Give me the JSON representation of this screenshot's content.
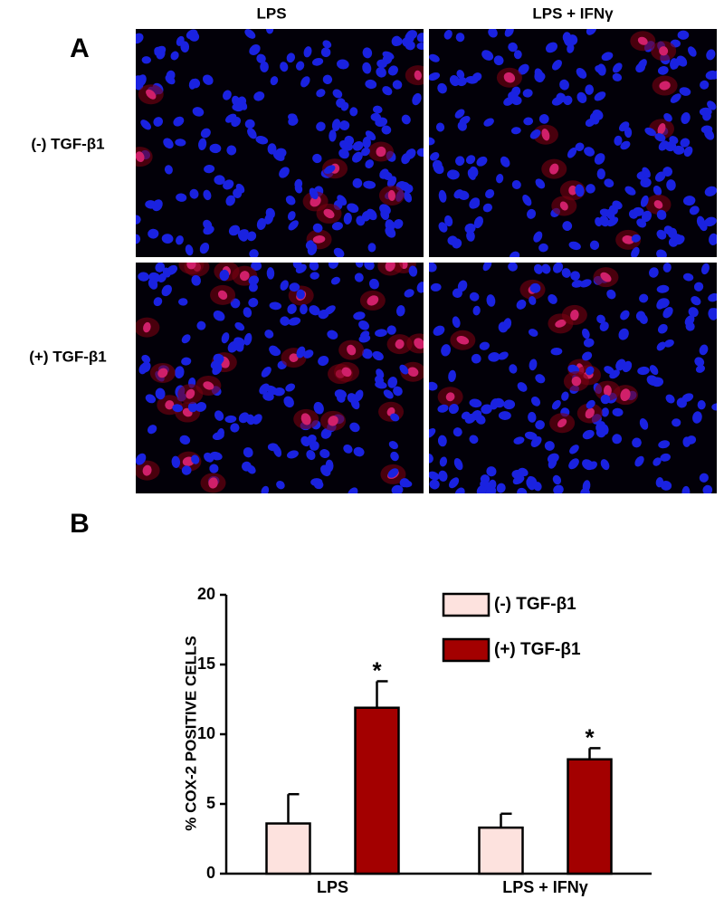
{
  "panel_a": {
    "label": "A",
    "columns": [
      "LPS",
      "LPS + IFNγ"
    ],
    "rows": [
      "(-) TGF-β1",
      "(+) TGF-β1"
    ]
  },
  "panel_b_label": "B",
  "chart_data": {
    "type": "bar",
    "ylabel": "% COX-2 POSITIVE CELLS",
    "categories": [
      "LPS",
      "LPS + IFNγ"
    ],
    "series": [
      {
        "name": "(-) TGF-β1",
        "color": "#fde2de",
        "values": [
          3.6,
          3.3
        ],
        "errors": [
          2.1,
          1.0
        ]
      },
      {
        "name": "(+) TGF-β1",
        "color": "#a30000",
        "values": [
          11.9,
          8.2
        ],
        "errors": [
          1.9,
          0.8
        ],
        "significance": [
          "*",
          "*"
        ]
      }
    ],
    "ylim": [
      0,
      20
    ],
    "yticks": [
      0,
      5,
      10,
      15,
      20
    ],
    "legend": "upper right"
  }
}
